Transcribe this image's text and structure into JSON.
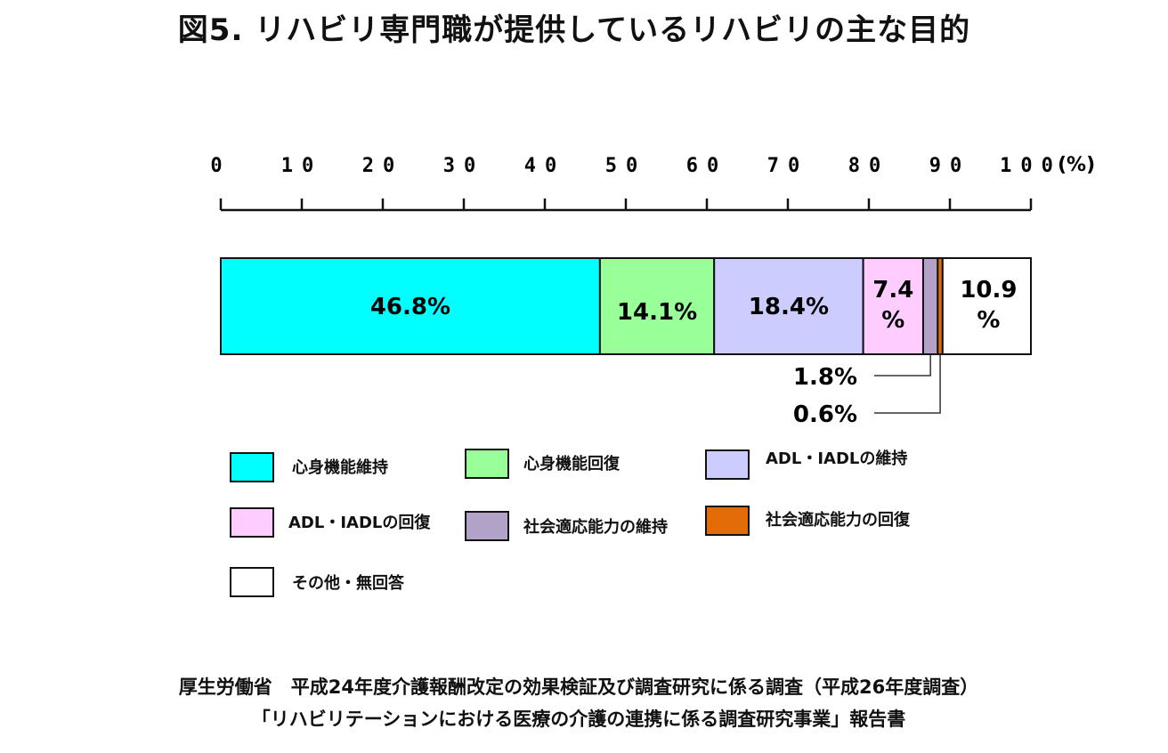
{
  "title": "図5. リハビリ専門職が提供しているリハビリの主な目的",
  "chart_data": {
    "type": "bar",
    "orientation": "horizontal-stacked-100",
    "axis": {
      "ticks": [
        "0",
        "10",
        "20",
        "30",
        "40",
        "50",
        "60",
        "70",
        "80",
        "90",
        "100"
      ],
      "unit_label": "(%)",
      "range": [
        0,
        100
      ]
    },
    "series": [
      {
        "name": "心身機能維持",
        "value": 46.8,
        "label": "46.8%",
        "color": "#00FFFF"
      },
      {
        "name": "心身機能回復",
        "value": 14.1,
        "label": "14.1%",
        "color": "#99FF99"
      },
      {
        "name": "ADL・IADLの維持",
        "value": 18.4,
        "label": "18.4%",
        "color": "#CCCCFF"
      },
      {
        "name": "ADL・IADLの回復",
        "value": 7.4,
        "label": "7.4%",
        "color": "#FFCCFF"
      },
      {
        "name": "社会適応能力の維持",
        "value": 1.8,
        "label": "1.8%",
        "color": "#B3A2C7"
      },
      {
        "name": "社会適応能力の回復",
        "value": 0.6,
        "label": "0.6%",
        "color": "#E36C09"
      },
      {
        "name": "その他・無回答",
        "value": 10.9,
        "label": "10.9%",
        "color": "#FFFFFF"
      }
    ],
    "grid": false,
    "legend_position": "bottom"
  },
  "source": {
    "line1": "厚生労働省　平成24年度介護報酬改定の効果検証及び調査研究に係る調査（平成26年度調査）",
    "line2": "「リハビリテーションにおける医療の介護の連携に係る調査研究事業」報告書"
  }
}
